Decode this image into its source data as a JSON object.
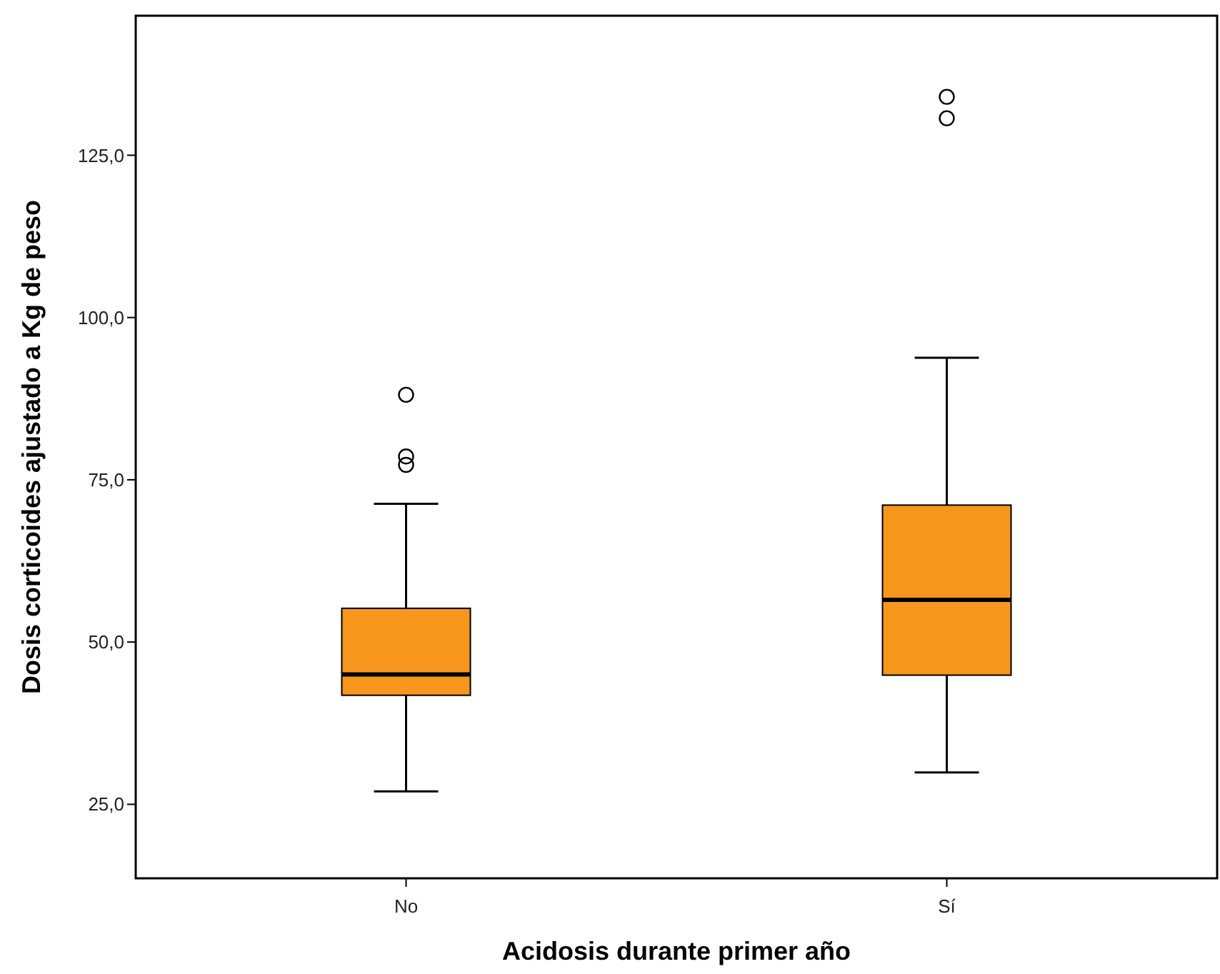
{
  "chart_data": {
    "type": "box",
    "xlabel": "Acidosis durante primer año",
    "ylabel": "Dosis corticoides ajustado a Kg de peso",
    "categories": [
      "No",
      "Sí"
    ],
    "ylim": [
      13.6,
      146.5
    ],
    "yticks": [
      {
        "value": 25,
        "label": "25,0"
      },
      {
        "value": 50,
        "label": "50,0"
      },
      {
        "value": 75,
        "label": "75,0"
      },
      {
        "value": 100,
        "label": "100,0"
      },
      {
        "value": 125,
        "label": "125,0"
      }
    ],
    "grid": false,
    "color": "#f7961d",
    "boxes": [
      {
        "low": 27,
        "q1": 41.8,
        "median": 45,
        "q3": 55.2,
        "high": 71.3,
        "outliers": [
          88.1,
          78.6,
          77.3
        ]
      },
      {
        "low": 29.9,
        "q1": 44.9,
        "median": 56.5,
        "q3": 71.1,
        "high": 93.8,
        "outliers": [
          130.7,
          134
        ]
      }
    ]
  }
}
